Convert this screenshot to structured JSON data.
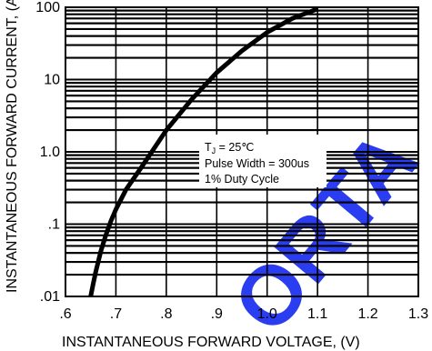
{
  "chart_data": {
    "type": "line",
    "xlabel": "INSTANTANEOUS FORWARD VOLTAGE, (V)",
    "ylabel": "INSTANTANEOUS FORWARD CURRENT, (A)",
    "xlim": [
      0.6,
      1.3
    ],
    "ylim": [
      0.01,
      100
    ],
    "yscale": "log",
    "grid": true,
    "x_ticks": [
      ".6",
      ".7",
      ".8",
      ".9",
      "1.0",
      "1.1",
      "1.2",
      "1.3"
    ],
    "y_ticks": [
      ".01",
      ".1",
      "1.0",
      "10",
      "100"
    ],
    "series": [
      {
        "x": [
          0.65,
          0.655,
          0.66,
          0.67,
          0.68,
          0.69,
          0.7,
          0.72,
          0.75,
          0.8,
          0.85,
          0.9,
          0.95,
          1.0,
          1.05,
          1.1
        ],
        "y": [
          0.01,
          0.015,
          0.022,
          0.042,
          0.07,
          0.11,
          0.16,
          0.3,
          0.6,
          2.0,
          5.3,
          12.5,
          25,
          45,
          70,
          95
        ]
      }
    ],
    "annotation": {
      "line1_main": "T",
      "line1_sub": "J",
      "line1_rest": " = 25",
      "line1_unit": "℃",
      "line2": "Pulse Width = 300us",
      "line3": "1% Duty Cycle"
    },
    "watermark": "ORTA",
    "colors": {
      "line": "#000000",
      "grid": "#000000",
      "watermark": "#2a3df0"
    }
  }
}
